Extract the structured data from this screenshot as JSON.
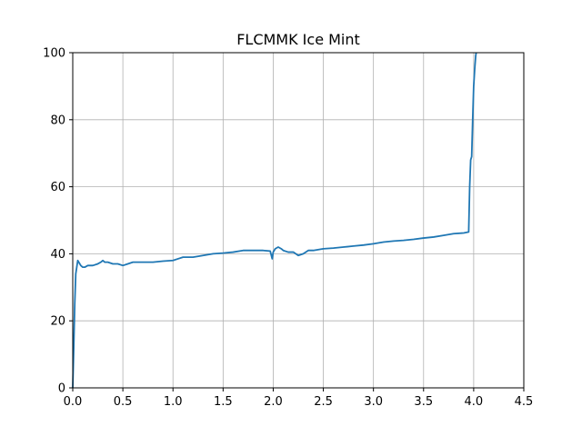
{
  "chart_data": {
    "type": "line",
    "title": "FLCMMK Ice Mint",
    "xlabel": "",
    "ylabel": "",
    "xlim": [
      0.0,
      4.5
    ],
    "ylim": [
      0,
      100
    ],
    "grid": true,
    "xticks": [
      "0.0",
      "0.5",
      "1.0",
      "1.5",
      "2.0",
      "2.5",
      "3.0",
      "3.5",
      "4.0",
      "4.5"
    ],
    "yticks": [
      "0",
      "20",
      "40",
      "60",
      "80",
      "100"
    ],
    "series": [
      {
        "color": "#1f77b4",
        "x": [
          0.0,
          0.01,
          0.02,
          0.03,
          0.04,
          0.05,
          0.06,
          0.08,
          0.1,
          0.12,
          0.15,
          0.2,
          0.25,
          0.28,
          0.3,
          0.32,
          0.35,
          0.4,
          0.45,
          0.5,
          0.55,
          0.6,
          0.65,
          0.7,
          0.8,
          0.9,
          1.0,
          1.05,
          1.1,
          1.2,
          1.3,
          1.4,
          1.5,
          1.6,
          1.7,
          1.8,
          1.9,
          1.97,
          1.99,
          2.0,
          2.02,
          2.05,
          2.08,
          2.1,
          2.15,
          2.2,
          2.25,
          2.3,
          2.35,
          2.4,
          2.5,
          2.6,
          2.7,
          2.8,
          2.9,
          3.0,
          3.1,
          3.2,
          3.3,
          3.4,
          3.5,
          3.6,
          3.7,
          3.8,
          3.9,
          3.95,
          3.96,
          3.97,
          3.98,
          3.99,
          4.0,
          4.01,
          4.02,
          4.025
        ],
        "y": [
          0,
          12,
          25,
          34,
          36,
          38,
          37.5,
          36.5,
          36,
          36,
          36.5,
          36.5,
          37,
          37.5,
          38,
          37.5,
          37.5,
          37,
          37,
          36.5,
          37,
          37.5,
          37.5,
          37.5,
          37.5,
          37.8,
          38,
          38.5,
          39,
          39,
          39.5,
          40,
          40.2,
          40.5,
          41,
          41,
          41,
          40.8,
          38.5,
          40.5,
          41.5,
          42,
          41.5,
          41,
          40.5,
          40.5,
          39.5,
          40,
          41,
          41,
          41.5,
          41.7,
          42,
          42.3,
          42.6,
          43,
          43.5,
          43.8,
          44,
          44.3,
          44.7,
          45,
          45.5,
          46,
          46.2,
          46.5,
          60,
          68,
          69,
          80,
          90,
          95,
          99,
          100
        ]
      }
    ]
  }
}
